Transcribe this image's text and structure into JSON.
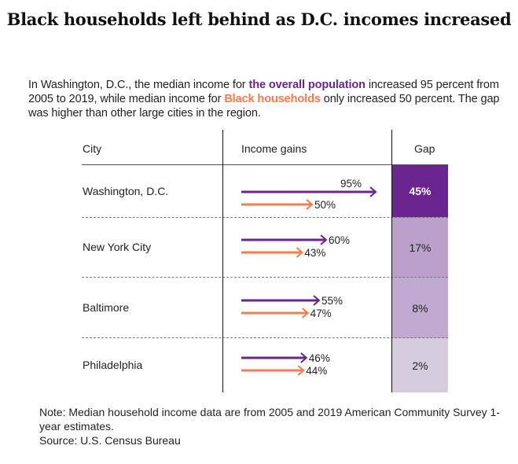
{
  "title": "Black households left behind as D.C. incomes increased",
  "intro": {
    "part1": "In Washington, D.C., the median income for ",
    "highlight_overall": "the overall population",
    "part2": " increased 95 percent from 2005 to 2019, while median income for ",
    "highlight_black": "Black households",
    "part3": " only increased 50 percent. The gap was higher than other large cities in the region."
  },
  "colors": {
    "overall": "#6a2590",
    "black": "#f47d4e",
    "gap_scale": [
      "#6a2590",
      "#bba0cb",
      "#c1a9d2",
      "#d6cce0"
    ]
  },
  "headers": {
    "city": "City",
    "gains": "Income gains",
    "gap": "Gap"
  },
  "note": "Note: Median household income data are from 2005 and 2019 American Community Survey 1-year estimates.",
  "source": "Source: U.S. Census Bureau",
  "chart_data": {
    "type": "table",
    "title": "Black households left behind as D.C. incomes increased",
    "columns": [
      "City",
      "Income gains",
      "Gap"
    ],
    "series": [
      {
        "name": "Overall population",
        "color": "#6a2590",
        "values": [
          95,
          60,
          55,
          46
        ]
      },
      {
        "name": "Black households",
        "color": "#f47d4e",
        "values": [
          50,
          43,
          47,
          44
        ]
      }
    ],
    "categories": [
      "Washington, D.C.",
      "New York City",
      "Baltimore",
      "Philadelphia"
    ],
    "rows": [
      {
        "city": "Washington, D.C.",
        "overall": 95,
        "overall_label": "95%",
        "black": 50,
        "black_label": "50%",
        "gap": 45,
        "gap_label": "45%"
      },
      {
        "city": "New York City",
        "overall": 60,
        "overall_label": "60%",
        "black": 43,
        "black_label": "43%",
        "gap": 17,
        "gap_label": "17%"
      },
      {
        "city": "Baltimore",
        "overall": 55,
        "overall_label": "55%",
        "black": 47,
        "black_label": "47%",
        "gap": 8,
        "gap_label": "8%"
      },
      {
        "city": "Philadelphia",
        "overall": 46,
        "overall_label": "46%",
        "black": 44,
        "black_label": "44%",
        "gap": 2,
        "gap_label": "2%"
      }
    ],
    "unit": "percent"
  }
}
